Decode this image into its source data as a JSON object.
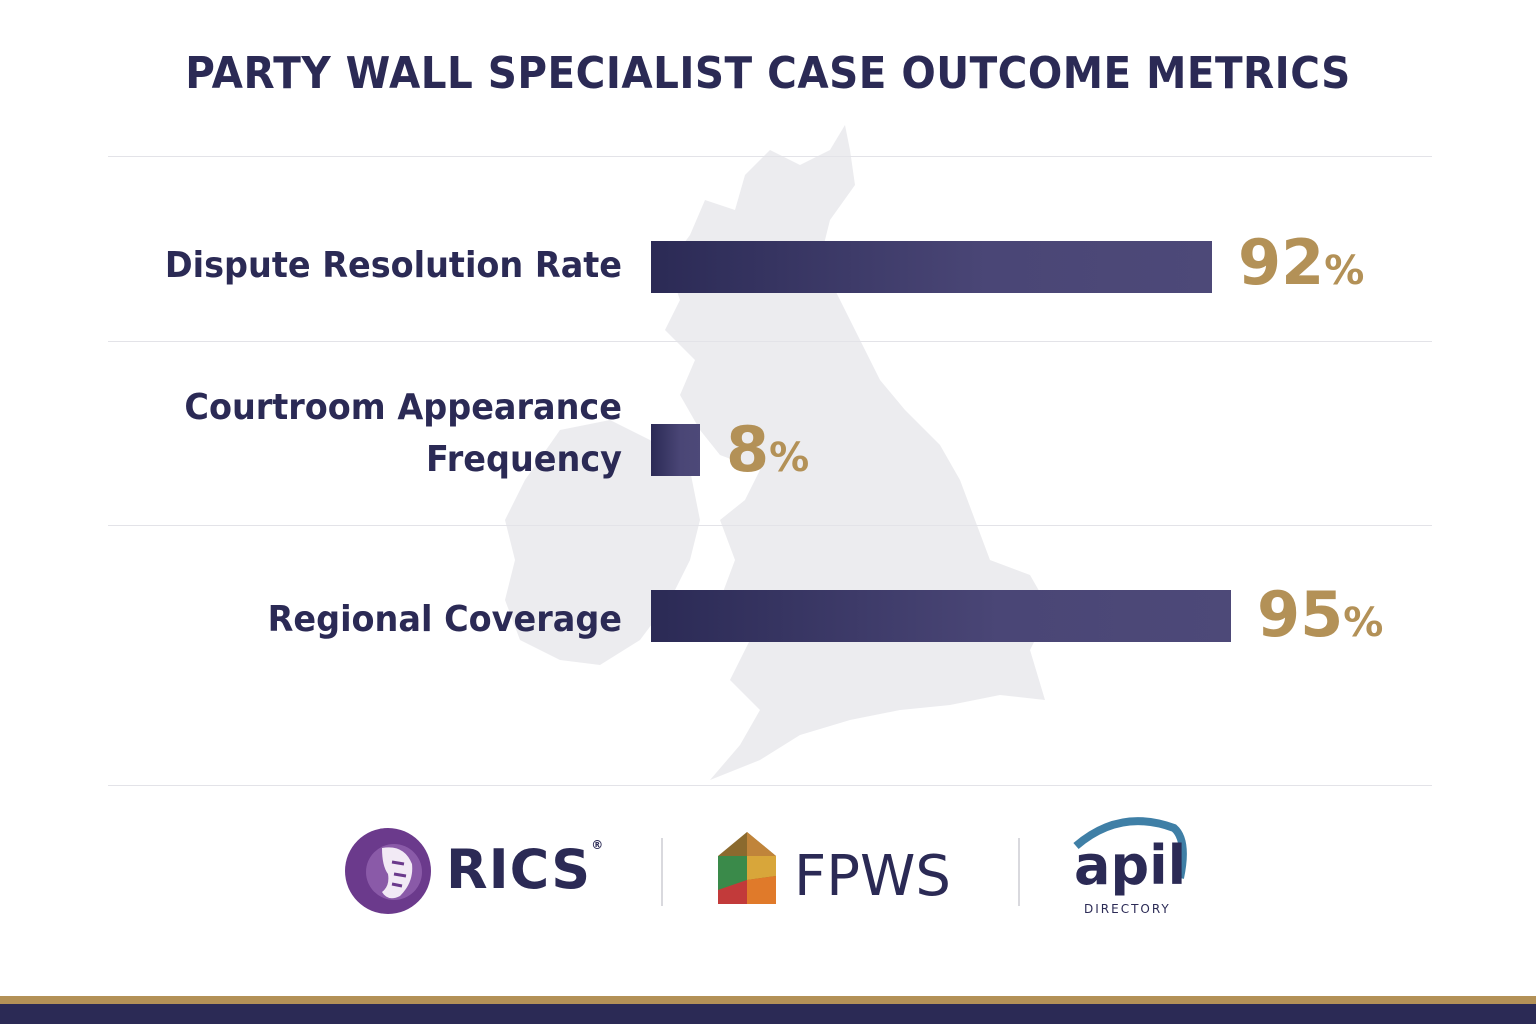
{
  "chart_data": {
    "type": "bar",
    "orientation": "horizontal",
    "title": "PARTY WALL SPECIALIST CASE OUTCOME METRICS",
    "categories": [
      [
        "Dispute Resolution Rate"
      ],
      [
        "Courtroom Appearance",
        "Frequency"
      ],
      [
        "Regional Coverage"
      ]
    ],
    "values": [
      92,
      8,
      95
    ],
    "value_labels": [
      "92",
      "8",
      "95"
    ],
    "unit": "%",
    "xlim": [
      0,
      100
    ],
    "bar_color": "#2b2a55",
    "value_color": "#b39157"
  },
  "logos": {
    "rics": {
      "text": "RICS",
      "mark": "®",
      "color": "#2b2a55",
      "icon": "lion-head-icon",
      "icon_color": "#6b3a8c"
    },
    "fpws": {
      "text": "FPWS",
      "color": "#2b2a55",
      "icon": "house-icon"
    },
    "apil": {
      "text": "apil",
      "sub": "DIRECTORY",
      "color": "#2b2a55",
      "arc_color": "#3f7fa6"
    }
  },
  "colors": {
    "navy": "#2b2a55",
    "gold": "#b39157",
    "map": "#ececef"
  }
}
